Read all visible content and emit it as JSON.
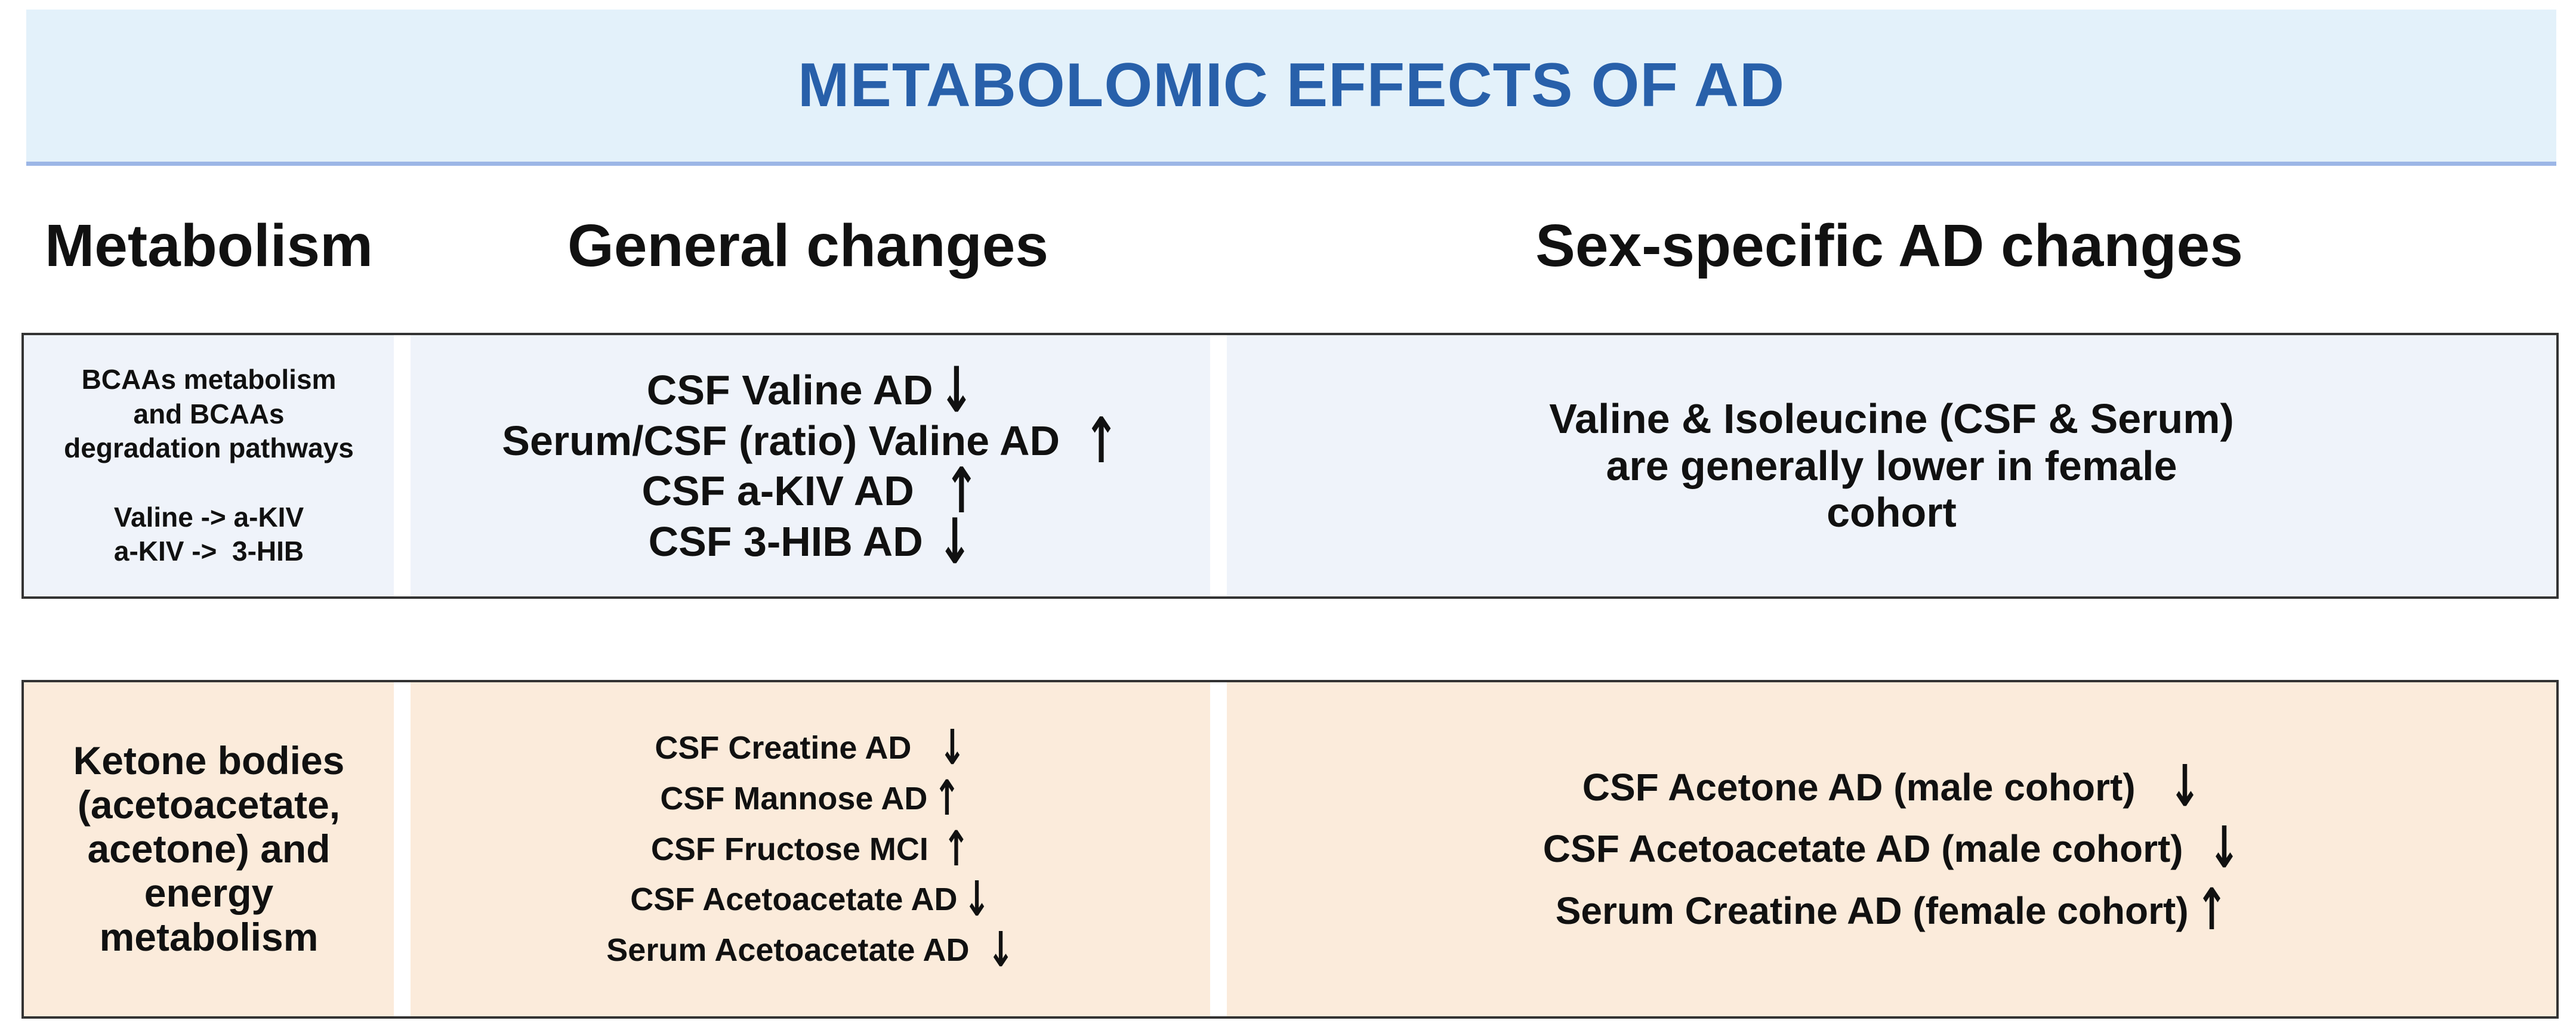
{
  "header": {
    "title": "METABOLOMIC EFFECTS OF AD"
  },
  "columns": {
    "metabolism": "Metabolism",
    "general": "General changes",
    "sex_specific": "Sex-specific AD changes"
  },
  "rows": [
    {
      "metabolism": {
        "line1": "BCAAs metabolism",
        "line2": "and BCAAs",
        "line3": "degradation pathways",
        "line4": "Valine -> a-KIV",
        "line5": "a-KIV ->  3-HIB"
      },
      "general_changes": [
        {
          "text": "CSF Valine AD",
          "direction": "down",
          "arrow": "↓"
        },
        {
          "text": "Serum/CSF (ratio) Valine AD",
          "direction": "up",
          "arrow": "↑"
        },
        {
          "text": "CSF a-KIV AD",
          "direction": "up",
          "arrow": "↑"
        },
        {
          "text": "CSF 3-HIB AD",
          "direction": "down",
          "arrow": "↓"
        }
      ],
      "sex_specific": {
        "line1": "Valine & Isoleucine (CSF & Serum)",
        "line2": "are generally lower in female",
        "line3": "cohort"
      }
    },
    {
      "metabolism": {
        "line1": "Ketone bodies",
        "line2": "(acetoacetate,",
        "line3": "acetone) and",
        "line4": "energy",
        "line5": "metabolism"
      },
      "general_changes": [
        {
          "text": "CSF Creatine AD",
          "direction": "down",
          "arrow": "↓"
        },
        {
          "text": "CSF Mannose AD",
          "direction": "up",
          "arrow": "↑"
        },
        {
          "text": "CSF Fructose MCI",
          "direction": "up",
          "arrow": "↑"
        },
        {
          "text": "CSF Acetoacetate AD",
          "direction": "down",
          "arrow": "↓"
        },
        {
          "text": "Serum Acetoacetate AD",
          "direction": "down",
          "arrow": "↓"
        }
      ],
      "sex_specific_changes": [
        {
          "text": "CSF Acetone AD (male cohort)",
          "direction": "down",
          "arrow": "↓"
        },
        {
          "text": "CSF Acetoacetate AD (male cohort)",
          "direction": "down",
          "arrow": "↓"
        },
        {
          "text": "Serum Creatine AD (female cohort)",
          "direction": "up",
          "arrow": "↑"
        }
      ]
    }
  ]
}
